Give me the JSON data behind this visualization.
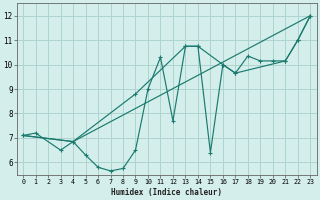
{
  "xlabel": "Humidex (Indice chaleur)",
  "bg_color": "#d4eeeb",
  "grid_color": "#aed4d0",
  "line_color": "#1a7a6e",
  "xlim": [
    -0.5,
    23.5
  ],
  "ylim": [
    5.5,
    12.5
  ],
  "xticks": [
    0,
    1,
    2,
    3,
    4,
    5,
    6,
    7,
    8,
    9,
    10,
    11,
    12,
    13,
    14,
    15,
    16,
    17,
    18,
    19,
    20,
    21,
    22,
    23
  ],
  "yticks": [
    6,
    7,
    8,
    9,
    10,
    11,
    12
  ],
  "line1_x": [
    0,
    1,
    3,
    4,
    5,
    6,
    7,
    8,
    9,
    10,
    11,
    12,
    13,
    14,
    15,
    16,
    17,
    18,
    19,
    20,
    21,
    22,
    23
  ],
  "line1_y": [
    7.1,
    7.2,
    6.5,
    6.85,
    6.3,
    5.8,
    5.65,
    5.75,
    6.5,
    9.0,
    10.3,
    7.7,
    10.75,
    10.75,
    6.4,
    10.0,
    9.65,
    10.35,
    10.15,
    10.15,
    10.15,
    11.0,
    12.0
  ],
  "line2_x": [
    0,
    4,
    9,
    13,
    14,
    16,
    17,
    21,
    22,
    23
  ],
  "line2_y": [
    7.1,
    6.85,
    8.8,
    10.75,
    10.75,
    10.0,
    9.65,
    10.15,
    11.0,
    12.0
  ],
  "line3_x": [
    0,
    4,
    23
  ],
  "line3_y": [
    7.1,
    6.85,
    12.0
  ]
}
